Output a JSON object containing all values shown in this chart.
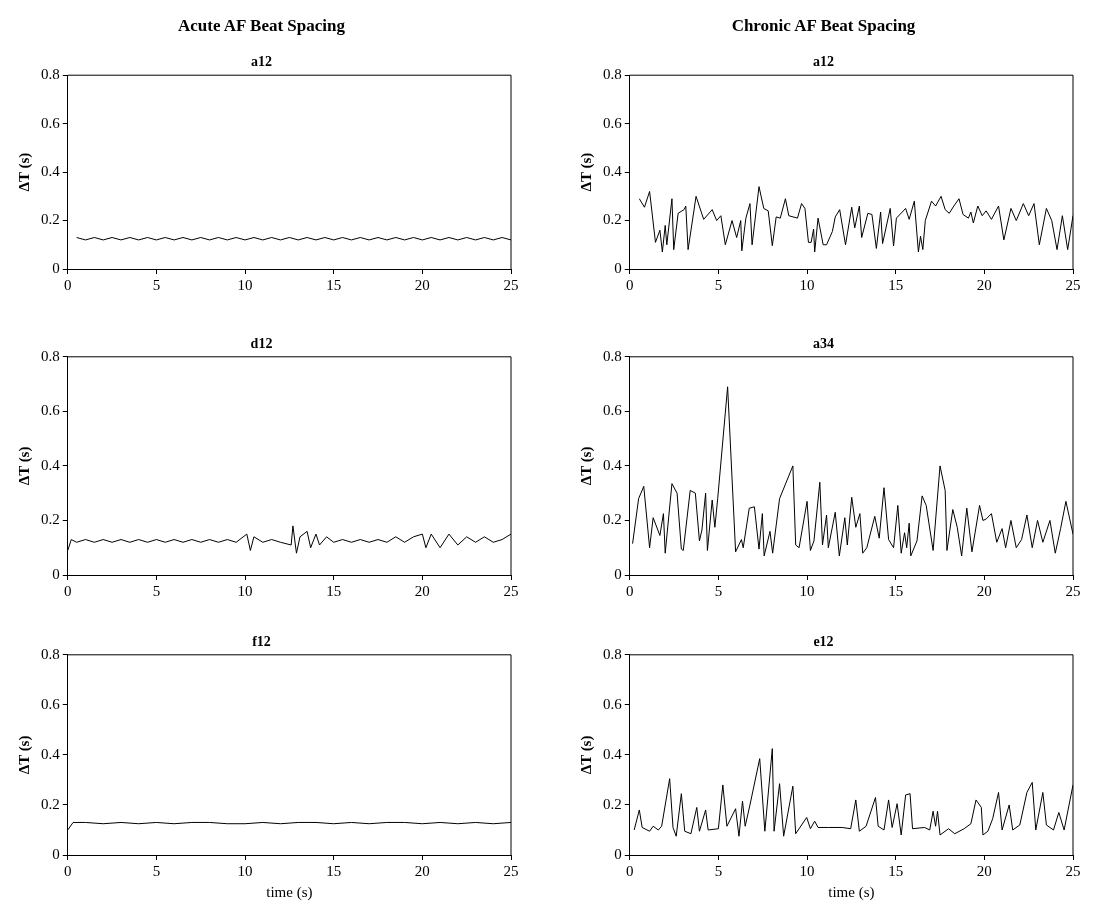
{
  "chart_data": [
    {
      "type": "line",
      "title": "Acute AF Beat Spacing",
      "subtitle": "a12",
      "ylabel": "ΔT (s)",
      "xlim": [
        0,
        25
      ],
      "xticks": [
        0,
        5,
        10,
        15,
        20,
        25
      ],
      "ylim": [
        0,
        0.8
      ],
      "yticks": [
        0,
        0.2,
        0.4,
        0.6,
        0.8
      ],
      "grid": false,
      "marker": "none",
      "series": [
        {
          "color": "#000000",
          "x": [
            0.5,
            1,
            1.5,
            2,
            2.5,
            3,
            3.5,
            4,
            4.5,
            5,
            5.5,
            6,
            6.5,
            7,
            7.5,
            8,
            8.5,
            9,
            9.5,
            10,
            10.5,
            11,
            11.5,
            12,
            12.5,
            13,
            13.5,
            14,
            14.5,
            15,
            15.5,
            16,
            16.5,
            17,
            17.5,
            18,
            18.5,
            19,
            19.5,
            20,
            20.5,
            21,
            21.5,
            22,
            22.5,
            23,
            23.5,
            24,
            24.5,
            25
          ],
          "values": [
            0.13,
            0.12,
            0.13,
            0.12,
            0.13,
            0.12,
            0.13,
            0.12,
            0.13,
            0.12,
            0.13,
            0.12,
            0.13,
            0.12,
            0.13,
            0.12,
            0.13,
            0.12,
            0.13,
            0.12,
            0.13,
            0.12,
            0.13,
            0.12,
            0.13,
            0.12,
            0.13,
            0.12,
            0.13,
            0.12,
            0.13,
            0.12,
            0.13,
            0.12,
            0.13,
            0.12,
            0.13,
            0.12,
            0.13,
            0.12,
            0.13,
            0.12,
            0.13,
            0.12,
            0.13,
            0.12,
            0.13,
            0.12,
            0.13,
            0.12
          ]
        }
      ]
    },
    {
      "type": "line",
      "title": "Chronic AF Beat Spacing",
      "subtitle": "a12",
      "ylabel": "ΔT (s)",
      "xlim": [
        0,
        25
      ],
      "xticks": [
        0,
        5,
        10,
        15,
        20,
        25
      ],
      "ylim": [
        0,
        0.8
      ],
      "yticks": [
        0,
        0.2,
        0.4,
        0.6,
        0.8
      ],
      "grid": false,
      "marker": "none",
      "series": [
        {
          "color": "#000000",
          "x": [
            0.54,
            0.83,
            1.12,
            1.45,
            1.7,
            1.84,
            2.0,
            2.09,
            2.38,
            2.48,
            2.73,
            3.06,
            3.16,
            3.29,
            3.74,
            4.17,
            4.65,
            4.9,
            5.14,
            5.39,
            5.77,
            6.03,
            6.26,
            6.32,
            6.55,
            6.78,
            6.9,
            7.29,
            7.56,
            7.81,
            8.04,
            8.26,
            8.49,
            8.78,
            8.97,
            9.46,
            9.69,
            9.88,
            10.08,
            10.23,
            10.37,
            10.43,
            10.62,
            10.91,
            11.1,
            11.43,
            11.59,
            11.84,
            12.17,
            12.52,
            12.69,
            12.95,
            13.08,
            13.43,
            13.66,
            13.91,
            14.15,
            14.26,
            14.69,
            14.88,
            15.04,
            15.56,
            15.76,
            16.05,
            16.28,
            16.4,
            16.53,
            16.67,
            17.02,
            17.25,
            17.56,
            17.79,
            18.02,
            18.28,
            18.57,
            18.8,
            19.1,
            19.24,
            19.38,
            19.63,
            19.88,
            20.1,
            20.4,
            20.8,
            21.1,
            21.5,
            21.8,
            22.2,
            22.5,
            22.8,
            23.1,
            23.5,
            23.8,
            24.1,
            24.4,
            24.7,
            25
          ],
          "values": [
            0.29,
            0.255,
            0.32,
            0.11,
            0.16,
            0.07,
            0.18,
            0.1,
            0.29,
            0.08,
            0.23,
            0.245,
            0.26,
            0.08,
            0.3,
            0.205,
            0.245,
            0.2,
            0.22,
            0.1,
            0.2,
            0.13,
            0.2,
            0.075,
            0.21,
            0.27,
            0.1,
            0.34,
            0.25,
            0.24,
            0.096,
            0.215,
            0.21,
            0.29,
            0.22,
            0.21,
            0.27,
            0.25,
            0.11,
            0.11,
            0.165,
            0.07,
            0.21,
            0.1,
            0.1,
            0.155,
            0.215,
            0.245,
            0.1,
            0.255,
            0.17,
            0.26,
            0.13,
            0.23,
            0.225,
            0.085,
            0.235,
            0.105,
            0.25,
            0.095,
            0.21,
            0.25,
            0.205,
            0.28,
            0.07,
            0.135,
            0.08,
            0.2,
            0.28,
            0.26,
            0.3,
            0.245,
            0.23,
            0.26,
            0.29,
            0.225,
            0.21,
            0.235,
            0.19,
            0.26,
            0.22,
            0.24,
            0.205,
            0.26,
            0.12,
            0.25,
            0.2,
            0.27,
            0.22,
            0.27,
            0.1,
            0.25,
            0.2,
            0.08,
            0.22,
            0.08,
            0.22
          ]
        }
      ]
    },
    {
      "type": "line",
      "title": "d12",
      "ylabel": "ΔT (s)",
      "xlim": [
        0,
        25
      ],
      "xticks": [
        0,
        5,
        10,
        15,
        20,
        25
      ],
      "ylim": [
        0,
        0.8
      ],
      "yticks": [
        0,
        0.2,
        0.4,
        0.6,
        0.8
      ],
      "grid": false,
      "marker": "none",
      "series": [
        {
          "color": "#000000",
          "x": [
            0,
            0.2,
            0.5,
            1,
            1.5,
            2,
            2.5,
            3,
            3.5,
            4,
            4.5,
            5,
            5.5,
            6,
            6.5,
            7,
            7.5,
            8,
            8.5,
            9,
            9.5,
            10.1,
            10.3,
            10.5,
            11,
            11.5,
            12,
            12.6,
            12.7,
            12.9,
            13.1,
            13.5,
            13.7,
            14,
            14.2,
            14.6,
            15,
            15.5,
            16,
            16.5,
            17,
            17.5,
            18,
            18.5,
            19,
            19.5,
            20,
            20.2,
            20.5,
            21,
            21.5,
            22,
            22.5,
            23,
            23.5,
            24,
            24.5,
            25
          ],
          "values": [
            0.09,
            0.13,
            0.12,
            0.13,
            0.12,
            0.13,
            0.12,
            0.13,
            0.12,
            0.13,
            0.12,
            0.13,
            0.12,
            0.13,
            0.12,
            0.13,
            0.12,
            0.13,
            0.12,
            0.13,
            0.12,
            0.15,
            0.09,
            0.14,
            0.12,
            0.13,
            0.12,
            0.11,
            0.18,
            0.08,
            0.14,
            0.16,
            0.1,
            0.15,
            0.11,
            0.14,
            0.12,
            0.13,
            0.12,
            0.13,
            0.12,
            0.13,
            0.12,
            0.14,
            0.12,
            0.14,
            0.15,
            0.1,
            0.15,
            0.1,
            0.15,
            0.11,
            0.14,
            0.12,
            0.14,
            0.12,
            0.13,
            0.15
          ]
        }
      ]
    },
    {
      "type": "line",
      "title": "a34",
      "ylabel": "ΔT (s)",
      "xlim": [
        0,
        25
      ],
      "xticks": [
        0,
        5,
        10,
        15,
        20,
        25
      ],
      "ylim": [
        0,
        0.8
      ],
      "yticks": [
        0,
        0.2,
        0.4,
        0.6,
        0.8
      ],
      "grid": false,
      "marker": "none",
      "series": [
        {
          "color": "#000000",
          "x": [
            0.16,
            0.5,
            0.79,
            1.12,
            1.32,
            1.7,
            1.9,
            2.0,
            2.38,
            2.67,
            2.91,
            3.02,
            3.41,
            3.7,
            3.93,
            4.07,
            4.28,
            4.38,
            4.65,
            4.8,
            4.96,
            5.52,
            5.97,
            6.3,
            6.4,
            6.74,
            7.03,
            7.29,
            7.48,
            7.58,
            7.91,
            8.06,
            8.45,
            9.2,
            9.36,
            9.55,
            10.0,
            10.19,
            10.39,
            10.72,
            10.87,
            11.1,
            11.2,
            11.59,
            11.82,
            12.13,
            12.27,
            12.52,
            12.75,
            12.98,
            13.14,
            13.37,
            13.82,
            14.07,
            14.34,
            14.6,
            14.88,
            15.12,
            15.31,
            15.5,
            15.62,
            15.76,
            15.85,
            16.2,
            16.49,
            16.72,
            17.11,
            17.5,
            17.79,
            17.89,
            18.22,
            18.47,
            18.72,
            19.01,
            19.3,
            19.73,
            19.92,
            20.1,
            20.4,
            20.7,
            21.0,
            21.2,
            21.5,
            21.8,
            22.1,
            22.4,
            22.7,
            23.0,
            23.3,
            23.7,
            24.0,
            24.3,
            24.6,
            25
          ],
          "values": [
            0.115,
            0.28,
            0.325,
            0.1,
            0.21,
            0.145,
            0.225,
            0.08,
            0.335,
            0.3,
            0.095,
            0.09,
            0.31,
            0.3,
            0.125,
            0.165,
            0.3,
            0.09,
            0.275,
            0.175,
            0.28,
            0.69,
            0.085,
            0.13,
            0.1,
            0.245,
            0.25,
            0.095,
            0.225,
            0.07,
            0.16,
            0.08,
            0.28,
            0.4,
            0.11,
            0.1,
            0.27,
            0.09,
            0.125,
            0.34,
            0.11,
            0.22,
            0.1,
            0.23,
            0.07,
            0.21,
            0.11,
            0.285,
            0.175,
            0.225,
            0.08,
            0.1,
            0.215,
            0.135,
            0.32,
            0.13,
            0.1,
            0.255,
            0.08,
            0.155,
            0.1,
            0.19,
            0.07,
            0.125,
            0.29,
            0.255,
            0.09,
            0.4,
            0.31,
            0.09,
            0.24,
            0.175,
            0.07,
            0.245,
            0.085,
            0.255,
            0.2,
            0.205,
            0.225,
            0.12,
            0.17,
            0.1,
            0.2,
            0.1,
            0.13,
            0.22,
            0.1,
            0.2,
            0.12,
            0.2,
            0.08,
            0.17,
            0.27,
            0.15
          ]
        }
      ]
    },
    {
      "type": "line",
      "title": "f12",
      "xlabel": "time (s)",
      "ylabel": "ΔT (s)",
      "xlim": [
        0,
        25
      ],
      "xticks": [
        0,
        5,
        10,
        15,
        20,
        25
      ],
      "ylim": [
        0,
        0.8
      ],
      "yticks": [
        0,
        0.2,
        0.4,
        0.6,
        0.8
      ],
      "grid": false,
      "marker": "none",
      "series": [
        {
          "color": "#000000",
          "x": [
            0,
            0.3,
            1,
            2,
            3,
            4,
            5,
            6,
            7,
            8,
            9,
            10,
            11,
            12,
            13,
            14,
            15,
            16,
            17,
            18,
            19,
            20,
            21,
            22,
            23,
            24,
            25
          ],
          "values": [
            0.1,
            0.13,
            0.13,
            0.125,
            0.13,
            0.125,
            0.13,
            0.125,
            0.13,
            0.13,
            0.125,
            0.125,
            0.13,
            0.125,
            0.13,
            0.13,
            0.125,
            0.13,
            0.125,
            0.13,
            0.13,
            0.125,
            0.13,
            0.125,
            0.13,
            0.125,
            0.13
          ]
        }
      ]
    },
    {
      "type": "line",
      "title": "e12",
      "xlabel": "time (s)",
      "ylabel": "ΔT (s)",
      "xlim": [
        0,
        25
      ],
      "xticks": [
        0,
        5,
        10,
        15,
        20,
        25
      ],
      "ylim": [
        0,
        0.8
      ],
      "yticks": [
        0,
        0.2,
        0.4,
        0.6,
        0.8
      ],
      "grid": false,
      "marker": "none",
      "series": [
        {
          "color": "#000000",
          "x": [
            0.25,
            0.54,
            0.7,
            1.12,
            1.32,
            1.61,
            1.8,
            2.25,
            2.44,
            2.62,
            2.91,
            3.1,
            3.45,
            3.78,
            3.93,
            4.28,
            4.42,
            5.0,
            5.25,
            5.48,
            5.97,
            6.16,
            6.36,
            6.51,
            6.78,
            7.33,
            7.62,
            8.04,
            8.14,
            8.45,
            8.68,
            9.2,
            9.36,
            9.98,
            10.19,
            10.43,
            10.62,
            11.2,
            11.98,
            12.46,
            12.75,
            12.95,
            13.33,
            13.86,
            14.01,
            14.34,
            14.6,
            14.8,
            15.08,
            15.31,
            15.56,
            15.81,
            15.95,
            16.63,
            16.92,
            17.11,
            17.25,
            17.36,
            17.5,
            17.98,
            18.33,
            18.86,
            19.24,
            19.53,
            19.83,
            19.92,
            20.2,
            20.47,
            20.8,
            21.0,
            21.4,
            21.6,
            22.0,
            22.4,
            22.7,
            22.9,
            23.3,
            23.5,
            23.9,
            24.2,
            24.5,
            25
          ],
          "values": [
            0.1,
            0.18,
            0.11,
            0.095,
            0.115,
            0.1,
            0.115,
            0.305,
            0.11,
            0.075,
            0.245,
            0.095,
            0.085,
            0.19,
            0.095,
            0.18,
            0.1,
            0.105,
            0.28,
            0.115,
            0.185,
            0.075,
            0.215,
            0.115,
            0.2,
            0.385,
            0.095,
            0.425,
            0.095,
            0.285,
            0.075,
            0.275,
            0.085,
            0.15,
            0.105,
            0.135,
            0.11,
            0.11,
            0.11,
            0.105,
            0.22,
            0.095,
            0.115,
            0.23,
            0.115,
            0.1,
            0.22,
            0.11,
            0.205,
            0.08,
            0.24,
            0.245,
            0.105,
            0.11,
            0.1,
            0.175,
            0.115,
            0.175,
            0.08,
            0.105,
            0.085,
            0.105,
            0.125,
            0.22,
            0.19,
            0.08,
            0.095,
            0.145,
            0.25,
            0.1,
            0.2,
            0.1,
            0.12,
            0.25,
            0.29,
            0.1,
            0.25,
            0.12,
            0.1,
            0.17,
            0.1,
            0.28
          ]
        }
      ]
    }
  ]
}
